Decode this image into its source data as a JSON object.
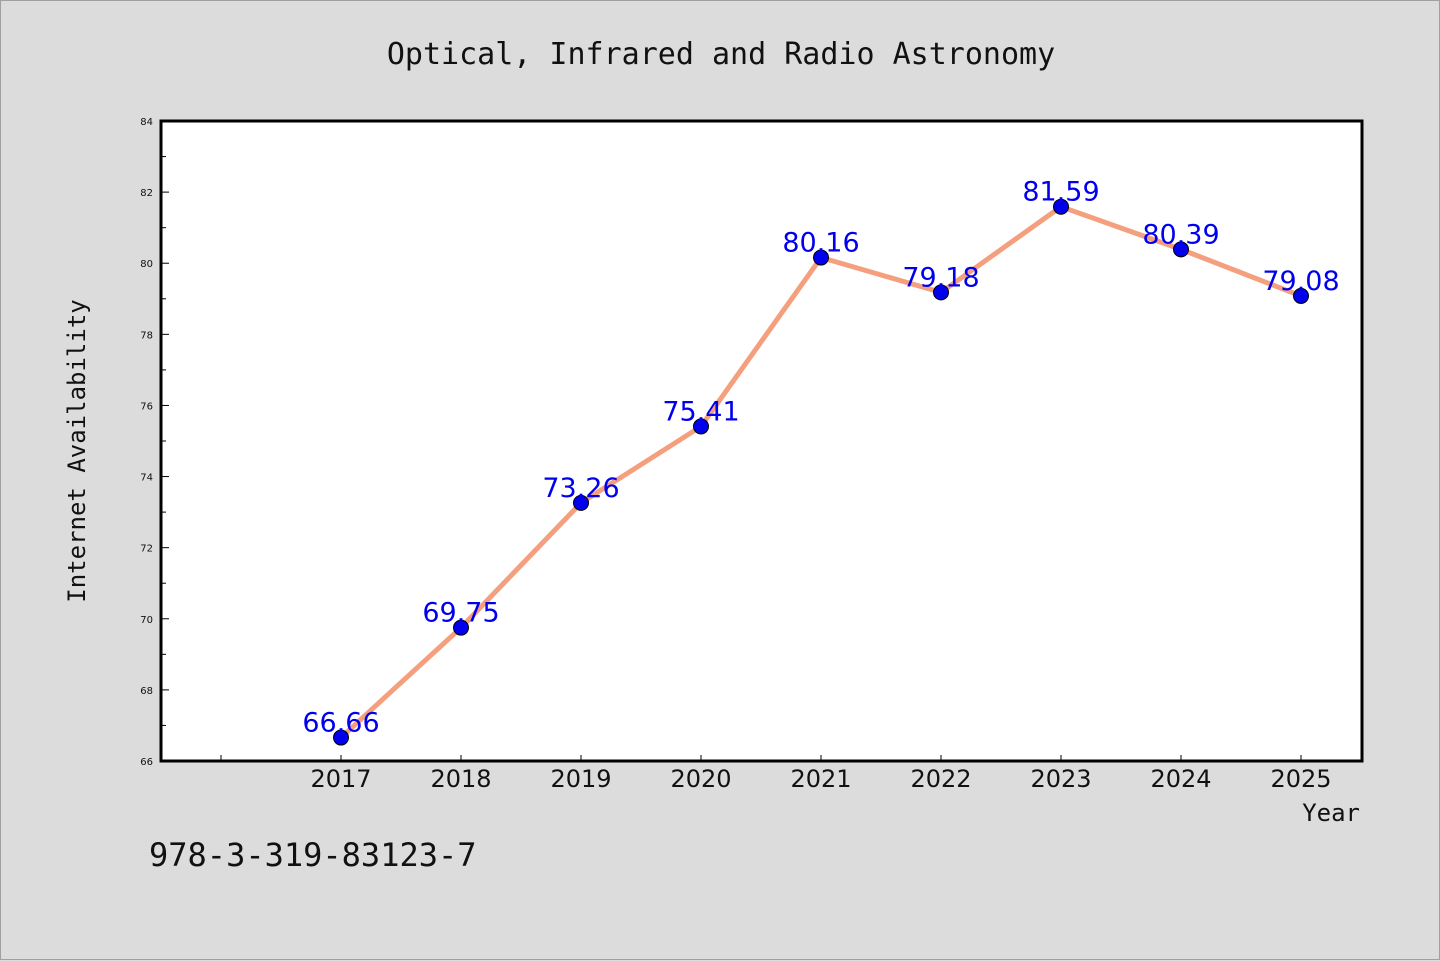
{
  "chart_data": {
    "type": "line",
    "title": "Optical, Infrared and Radio Astronomy",
    "xlabel": "Year",
    "ylabel": "Internet Availability",
    "x": [
      "2017",
      "2018",
      "2019",
      "2020",
      "2021",
      "2022",
      "2023",
      "2024",
      "2025"
    ],
    "values": [
      66.66,
      69.75,
      73.26,
      75.41,
      80.16,
      79.18,
      81.59,
      80.39,
      79.08
    ],
    "data_labels": [
      "66.66",
      "69.75",
      "73.26",
      "75.41",
      "80.16",
      "79.18",
      "81.59",
      "80.39",
      "79.08"
    ],
    "ylim": [
      66,
      84
    ],
    "yticks": [
      "66",
      "68",
      "70",
      "72",
      "74",
      "76",
      "78",
      "80",
      "82",
      "84"
    ],
    "line_color": "#f4a07f",
    "marker_color": "#0000ee",
    "label_color": "#0000ee",
    "grid": false,
    "legend": "none"
  },
  "footer": {
    "code": "978-3-319-83123-7"
  }
}
